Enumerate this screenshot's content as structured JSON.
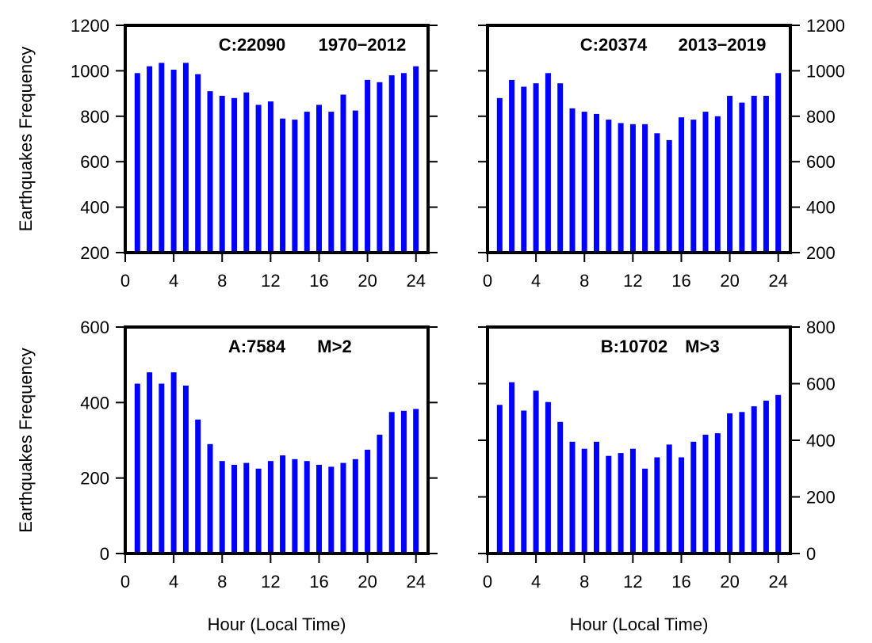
{
  "chart_data": [
    {
      "type": "bar",
      "panel": "top-left",
      "label_parts": [
        "C:22090",
        "1970−2012"
      ],
      "x": [
        1,
        2,
        3,
        4,
        5,
        6,
        7,
        8,
        9,
        10,
        11,
        12,
        13,
        14,
        15,
        16,
        17,
        18,
        19,
        20,
        21,
        22,
        23,
        24
      ],
      "values": [
        990,
        1020,
        1035,
        1005,
        1035,
        985,
        910,
        890,
        880,
        905,
        850,
        865,
        790,
        785,
        820,
        850,
        820,
        895,
        825,
        960,
        950,
        980,
        990,
        1020
      ],
      "xlabel": "",
      "ylabel": "Earthquakes Frequency",
      "xlim": [
        0,
        25
      ],
      "ylim": [
        200,
        1200
      ],
      "xticks": [
        0,
        4,
        8,
        12,
        16,
        20,
        24
      ],
      "xtick_labels": [
        "0",
        "4",
        "8",
        "12",
        "16",
        "20",
        "24"
      ],
      "yticks": [
        200,
        400,
        600,
        800,
        1000,
        1200
      ],
      "ytick_labels": [
        "200",
        "400",
        "600",
        "800",
        "1000",
        "1200"
      ],
      "yaxis_side": "left",
      "bar_color": "#0000ff",
      "grid": false
    },
    {
      "type": "bar",
      "panel": "top-right",
      "label_parts": [
        "C:20374",
        "2013−2019"
      ],
      "x": [
        1,
        2,
        3,
        4,
        5,
        6,
        7,
        8,
        9,
        10,
        11,
        12,
        13,
        14,
        15,
        16,
        17,
        18,
        19,
        20,
        21,
        22,
        23,
        24
      ],
      "values": [
        880,
        960,
        930,
        945,
        990,
        945,
        835,
        820,
        810,
        785,
        770,
        765,
        765,
        725,
        695,
        795,
        785,
        820,
        800,
        890,
        860,
        890,
        890,
        990
      ],
      "xlabel": "",
      "ylabel": "",
      "xlim": [
        0,
        25
      ],
      "ylim": [
        200,
        1200
      ],
      "xticks": [
        0,
        4,
        8,
        12,
        16,
        20,
        24
      ],
      "xtick_labels": [
        "0",
        "4",
        "8",
        "12",
        "16",
        "20",
        "24"
      ],
      "yticks": [
        200,
        400,
        600,
        800,
        1000,
        1200
      ],
      "ytick_labels": [
        "200",
        "400",
        "600",
        "800",
        "1000",
        "1200"
      ],
      "yaxis_side": "right",
      "bar_color": "#0000ff",
      "grid": false
    },
    {
      "type": "bar",
      "panel": "bottom-left",
      "label_parts": [
        "A:7584",
        "M>2"
      ],
      "x": [
        1,
        2,
        3,
        4,
        5,
        6,
        7,
        8,
        9,
        10,
        11,
        12,
        13,
        14,
        15,
        16,
        17,
        18,
        19,
        20,
        21,
        22,
        23,
        24
      ],
      "values": [
        450,
        480,
        450,
        480,
        445,
        355,
        290,
        245,
        235,
        240,
        225,
        245,
        260,
        250,
        245,
        235,
        230,
        240,
        250,
        275,
        315,
        375,
        378,
        383
      ],
      "xlabel": "Hour (Local Time)",
      "ylabel": "Earthquakes Frequency",
      "xlim": [
        0,
        25
      ],
      "ylim": [
        0,
        600
      ],
      "xticks": [
        0,
        4,
        8,
        12,
        16,
        20,
        24
      ],
      "xtick_labels": [
        "0",
        "4",
        "8",
        "12",
        "16",
        "20",
        "24"
      ],
      "yticks": [
        0,
        200,
        400,
        600
      ],
      "ytick_labels": [
        "0",
        "200",
        "400",
        "600"
      ],
      "yaxis_side": "left",
      "bar_color": "#0000ff",
      "grid": false
    },
    {
      "type": "bar",
      "panel": "bottom-right",
      "label_parts": [
        "B:10702",
        "M>3"
      ],
      "x": [
        1,
        2,
        3,
        4,
        5,
        6,
        7,
        8,
        9,
        10,
        11,
        12,
        13,
        14,
        15,
        16,
        17,
        18,
        19,
        20,
        21,
        22,
        23,
        24
      ],
      "values": [
        525,
        605,
        505,
        575,
        535,
        465,
        395,
        370,
        395,
        345,
        355,
        370,
        300,
        340,
        385,
        340,
        395,
        420,
        425,
        495,
        500,
        520,
        540,
        560
      ],
      "xlabel": "Hour (Local Time)",
      "ylabel": "",
      "xlim": [
        0,
        25
      ],
      "ylim": [
        0,
        800
      ],
      "xticks": [
        0,
        4,
        8,
        12,
        16,
        20,
        24
      ],
      "xtick_labels": [
        "0",
        "4",
        "8",
        "12",
        "16",
        "20",
        "24"
      ],
      "yticks": [
        0,
        200,
        400,
        600,
        800
      ],
      "ytick_labels": [
        "0",
        "200",
        "400",
        "600",
        "800"
      ],
      "yaxis_side": "right",
      "bar_color": "#0000ff",
      "grid": false
    }
  ]
}
